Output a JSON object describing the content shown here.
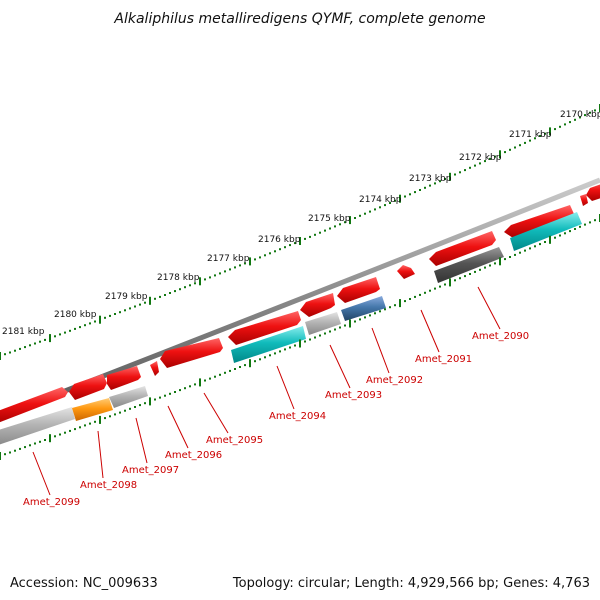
{
  "title": "Alkaliphilus metalliredigens QYMF, complete genome",
  "footer": {
    "accession": "Accession: NC_009633",
    "summary": "Topology: circular; Length: 4,929,566 bp; Genes: 4,763"
  },
  "ticks": [
    {
      "label": "2170 kbp"
    },
    {
      "label": "2171 kbp"
    },
    {
      "label": "2172 kbp"
    },
    {
      "label": "2173 kbp"
    },
    {
      "label": "2174 kbp"
    },
    {
      "label": "2175 kbp"
    },
    {
      "label": "2176 kbp"
    },
    {
      "label": "2177 kbp"
    },
    {
      "label": "2178 kbp"
    },
    {
      "label": "2179 kbp"
    },
    {
      "label": "2180 kbp"
    },
    {
      "label": "2181 kbp"
    }
  ],
  "genes": [
    {
      "label": "Amet_2090"
    },
    {
      "label": "Amet_2091"
    },
    {
      "label": "Amet_2092"
    },
    {
      "label": "Amet_2093"
    },
    {
      "label": "Amet_2094"
    },
    {
      "label": "Amet_2095"
    },
    {
      "label": "Amet_2096"
    },
    {
      "label": "Amet_2097"
    },
    {
      "label": "Amet_2098"
    },
    {
      "label": "Amet_2099"
    }
  ],
  "colors": {
    "forward_gene": "#ee1111",
    "rna_cyan": "#11bbbb",
    "blue": "#4477aa",
    "orange": "#ff9911",
    "grey": "#aaaaaa",
    "dark_grey": "#555555",
    "backbone": "#888888",
    "ticks": "#117711",
    "label": "#cc0000"
  }
}
